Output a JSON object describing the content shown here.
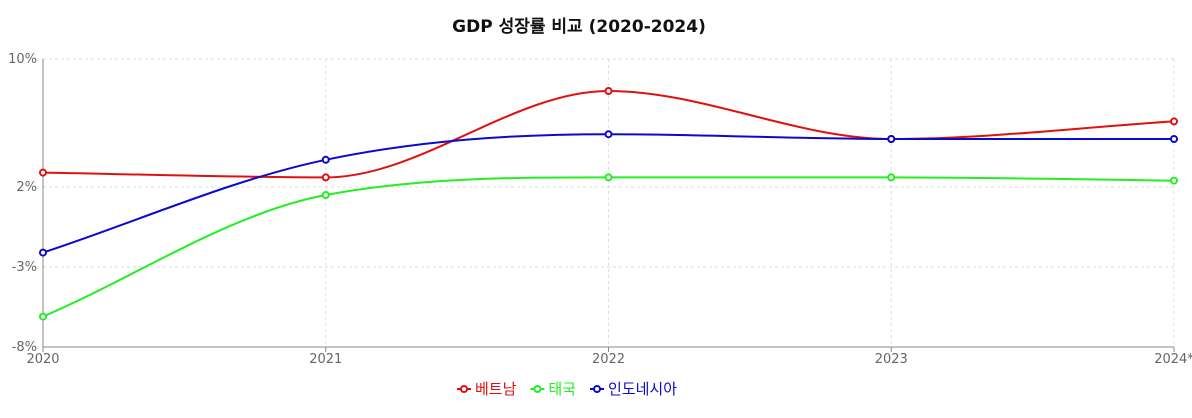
{
  "chart_data": {
    "type": "line",
    "title": "GDP 성장률 비교 (2020-2024)",
    "x": [
      "2020",
      "2021",
      "2022",
      "2023",
      "2024*"
    ],
    "y_ticks": [
      "-8%",
      "-3%",
      "2%",
      "10%"
    ],
    "y_tick_values": [
      -8,
      -3,
      2,
      10
    ],
    "ylim": [
      -8,
      10
    ],
    "grid": true,
    "legend_position": "bottom",
    "smooth": true,
    "series": [
      {
        "name": "베트남",
        "color": "#e01010",
        "values": [
          2.9,
          2.6,
          8.0,
          5.0,
          6.1
        ]
      },
      {
        "name": "태국",
        "color": "#22ee22",
        "values": [
          -6.1,
          1.5,
          2.6,
          2.6,
          2.4
        ]
      },
      {
        "name": "인도네시아",
        "color": "#0a0acc",
        "values": [
          -2.1,
          3.7,
          5.3,
          5.0,
          5.0
        ]
      }
    ]
  }
}
